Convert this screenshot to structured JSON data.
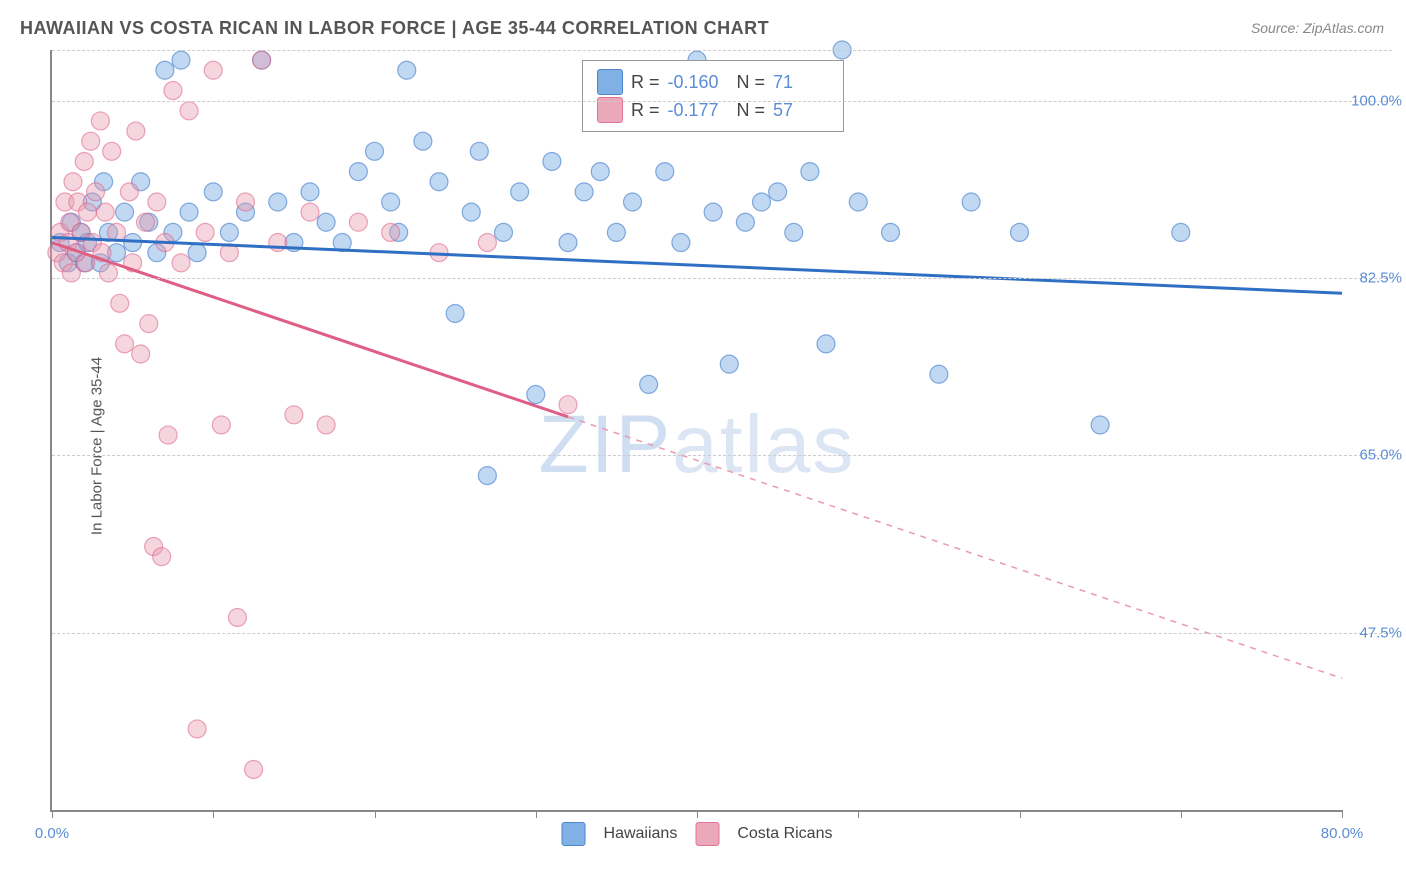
{
  "title": "HAWAIIAN VS COSTA RICAN IN LABOR FORCE | AGE 35-44 CORRELATION CHART",
  "source": "Source: ZipAtlas.com",
  "ylabel": "In Labor Force | Age 35-44",
  "watermark_a": "ZIP",
  "watermark_b": "atlas",
  "chart": {
    "type": "scatter",
    "xlim": [
      0,
      80
    ],
    "ylim": [
      30,
      105
    ],
    "xticks": [
      0,
      10,
      20,
      30,
      40,
      50,
      60,
      70,
      80
    ],
    "xtick_labels": {
      "0": "0.0%",
      "80": "80.0%"
    },
    "ygrid": [
      47.5,
      65.0,
      82.5,
      100.0,
      105.0
    ],
    "ytick_labels": [
      "47.5%",
      "65.0%",
      "82.5%",
      "100.0%"
    ],
    "background_color": "#ffffff",
    "grid_color": "#cccccc",
    "axis_color": "#888888",
    "marker_radius": 9,
    "marker_opacity": 0.42,
    "line_width": 3,
    "series": [
      {
        "name": "Hawaiians",
        "color": "#6aa3e0",
        "line_color": "#2f6fc4",
        "R": "-0.160",
        "N": "71",
        "trend": {
          "x1": 0,
          "y1": 86.5,
          "x2": 80,
          "y2": 81.0,
          "dash_after_x": null
        },
        "points": [
          [
            0.5,
            86
          ],
          [
            1,
            84
          ],
          [
            1.2,
            88
          ],
          [
            1.5,
            85
          ],
          [
            1.8,
            87
          ],
          [
            2,
            84
          ],
          [
            2.2,
            86
          ],
          [
            2.5,
            90
          ],
          [
            3,
            84
          ],
          [
            3.2,
            92
          ],
          [
            3.5,
            87
          ],
          [
            4,
            85
          ],
          [
            4.5,
            89
          ],
          [
            5,
            86
          ],
          [
            5.5,
            92
          ],
          [
            6,
            88
          ],
          [
            6.5,
            85
          ],
          [
            7,
            103
          ],
          [
            7.5,
            87
          ],
          [
            8,
            104
          ],
          [
            8.5,
            89
          ],
          [
            9,
            85
          ],
          [
            10,
            91
          ],
          [
            11,
            87
          ],
          [
            12,
            89
          ],
          [
            13,
            104
          ],
          [
            14,
            90
          ],
          [
            15,
            86
          ],
          [
            16,
            91
          ],
          [
            17,
            88
          ],
          [
            18,
            86
          ],
          [
            19,
            93
          ],
          [
            20,
            95
          ],
          [
            21,
            90
          ],
          [
            21.5,
            87
          ],
          [
            22,
            103
          ],
          [
            23,
            96
          ],
          [
            24,
            92
          ],
          [
            25,
            79
          ],
          [
            26,
            89
          ],
          [
            26.5,
            95
          ],
          [
            27,
            63
          ],
          [
            28,
            87
          ],
          [
            29,
            91
          ],
          [
            30,
            71
          ],
          [
            31,
            94
          ],
          [
            32,
            86
          ],
          [
            33,
            91
          ],
          [
            34,
            93
          ],
          [
            35,
            87
          ],
          [
            36,
            90
          ],
          [
            37,
            72
          ],
          [
            38,
            93
          ],
          [
            39,
            86
          ],
          [
            40,
            104
          ],
          [
            41,
            89
          ],
          [
            42,
            74
          ],
          [
            43,
            88
          ],
          [
            44,
            90
          ],
          [
            45,
            91
          ],
          [
            46,
            87
          ],
          [
            47,
            93
          ],
          [
            48,
            76
          ],
          [
            49,
            105
          ],
          [
            50,
            90
          ],
          [
            52,
            87
          ],
          [
            55,
            73
          ],
          [
            57,
            90
          ],
          [
            60,
            87
          ],
          [
            65,
            68
          ],
          [
            70,
            87
          ]
        ]
      },
      {
        "name": "Costa Ricans",
        "color": "#e89ab0",
        "line_color": "#de5e85",
        "R": "-0.177",
        "N": "57",
        "trend": {
          "x1": 0,
          "y1": 86.0,
          "x2": 80,
          "y2": 43.0,
          "dash_after_x": 32
        },
        "points": [
          [
            0.3,
            85
          ],
          [
            0.5,
            87
          ],
          [
            0.7,
            84
          ],
          [
            0.8,
            90
          ],
          [
            1,
            86
          ],
          [
            1.1,
            88
          ],
          [
            1.2,
            83
          ],
          [
            1.3,
            92
          ],
          [
            1.5,
            85
          ],
          [
            1.6,
            90
          ],
          [
            1.8,
            87
          ],
          [
            2,
            94
          ],
          [
            2.1,
            84
          ],
          [
            2.2,
            89
          ],
          [
            2.4,
            96
          ],
          [
            2.5,
            86
          ],
          [
            2.7,
            91
          ],
          [
            3,
            98
          ],
          [
            3.1,
            85
          ],
          [
            3.3,
            89
          ],
          [
            3.5,
            83
          ],
          [
            3.7,
            95
          ],
          [
            4,
            87
          ],
          [
            4.2,
            80
          ],
          [
            4.5,
            76
          ],
          [
            4.8,
            91
          ],
          [
            5,
            84
          ],
          [
            5.2,
            97
          ],
          [
            5.5,
            75
          ],
          [
            5.8,
            88
          ],
          [
            6,
            78
          ],
          [
            6.3,
            56
          ],
          [
            6.5,
            90
          ],
          [
            6.8,
            55
          ],
          [
            7,
            86
          ],
          [
            7.2,
            67
          ],
          [
            7.5,
            101
          ],
          [
            8,
            84
          ],
          [
            8.5,
            99
          ],
          [
            9,
            38
          ],
          [
            9.5,
            87
          ],
          [
            10,
            103
          ],
          [
            10.5,
            68
          ],
          [
            11,
            85
          ],
          [
            11.5,
            49
          ],
          [
            12,
            90
          ],
          [
            12.5,
            34
          ],
          [
            13,
            104
          ],
          [
            14,
            86
          ],
          [
            15,
            69
          ],
          [
            16,
            89
          ],
          [
            17,
            68
          ],
          [
            19,
            88
          ],
          [
            21,
            87
          ],
          [
            24,
            85
          ],
          [
            27,
            86
          ],
          [
            32,
            70
          ]
        ]
      }
    ],
    "legend_top": {
      "border_color": "#999999",
      "value_color": "#5b8dd6"
    },
    "legend_bottom_labels": [
      "Hawaiians",
      "Costa Ricans"
    ]
  }
}
